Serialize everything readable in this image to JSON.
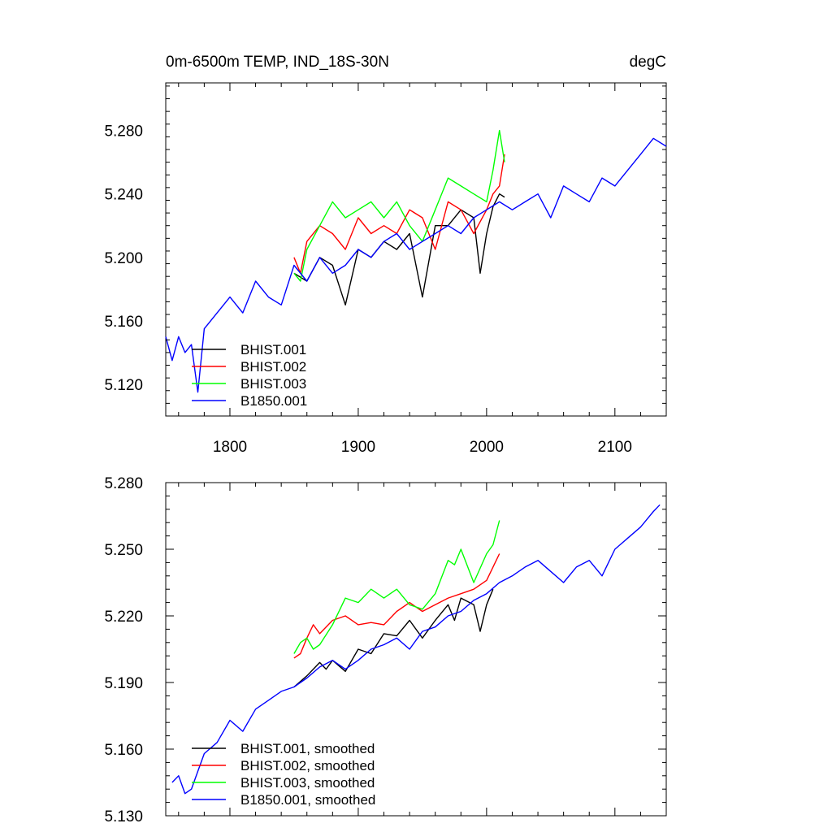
{
  "chart_data": [
    {
      "type": "line",
      "title": "0m-6500m TEMP, IND_18S-30N",
      "units_label": "degC",
      "xlim": [
        1750,
        2140
      ],
      "ylim": [
        5.1,
        5.31
      ],
      "xticks": [
        1800,
        1900,
        2000,
        2100
      ],
      "xtick_labels": [
        "1800",
        "1900",
        "2000",
        "2100"
      ],
      "yticks": [
        5.12,
        5.16,
        5.2,
        5.24,
        5.28
      ],
      "ytick_labels": [
        "5.120",
        "5.160",
        "5.200",
        "5.240",
        "5.280"
      ],
      "legend_position": "bottom-left",
      "series": [
        {
          "name": "BHIST.001",
          "color": "#000000",
          "x": [
            1850,
            1860,
            1870,
            1880,
            1890,
            1900,
            1910,
            1920,
            1930,
            1940,
            1950,
            1960,
            1970,
            1980,
            1990,
            1995,
            2000,
            2005,
            2010,
            2014
          ],
          "y": [
            5.19,
            5.185,
            5.2,
            5.195,
            5.17,
            5.205,
            5.2,
            5.21,
            5.205,
            5.215,
            5.175,
            5.22,
            5.22,
            5.23,
            5.225,
            5.19,
            5.215,
            5.232,
            5.24,
            5.238
          ]
        },
        {
          "name": "BHIST.002",
          "color": "#ff0000",
          "x": [
            1850,
            1855,
            1860,
            1870,
            1880,
            1890,
            1900,
            1910,
            1920,
            1930,
            1940,
            1950,
            1960,
            1970,
            1980,
            1990,
            2000,
            2005,
            2010,
            2014
          ],
          "y": [
            5.2,
            5.19,
            5.21,
            5.22,
            5.215,
            5.205,
            5.225,
            5.215,
            5.22,
            5.215,
            5.23,
            5.225,
            5.205,
            5.235,
            5.23,
            5.215,
            5.23,
            5.24,
            5.245,
            5.265
          ]
        },
        {
          "name": "BHIST.003",
          "color": "#00ff00",
          "x": [
            1850,
            1855,
            1860,
            1870,
            1880,
            1890,
            1900,
            1910,
            1920,
            1930,
            1940,
            1950,
            1960,
            1970,
            1980,
            1990,
            2000,
            2005,
            2010,
            2014
          ],
          "y": [
            5.19,
            5.185,
            5.205,
            5.22,
            5.235,
            5.225,
            5.23,
            5.235,
            5.225,
            5.235,
            5.22,
            5.21,
            5.23,
            5.25,
            5.245,
            5.24,
            5.235,
            5.255,
            5.28,
            5.26
          ]
        },
        {
          "name": "B1850.001",
          "color": "#0000ff",
          "x": [
            1750,
            1755,
            1760,
            1765,
            1770,
            1775,
            1780,
            1790,
            1800,
            1810,
            1820,
            1830,
            1840,
            1850,
            1860,
            1870,
            1880,
            1890,
            1900,
            1910,
            1920,
            1930,
            1940,
            1950,
            1960,
            1970,
            1980,
            1990,
            2000,
            2010,
            2020,
            2030,
            2040,
            2050,
            2060,
            2070,
            2080,
            2090,
            2100,
            2110,
            2120,
            2130,
            2140
          ],
          "y": [
            5.15,
            5.135,
            5.15,
            5.14,
            5.145,
            5.115,
            5.155,
            5.165,
            5.175,
            5.165,
            5.185,
            5.175,
            5.17,
            5.195,
            5.185,
            5.2,
            5.19,
            5.195,
            5.205,
            5.2,
            5.21,
            5.215,
            5.205,
            5.21,
            5.215,
            5.22,
            5.215,
            5.225,
            5.23,
            5.235,
            5.23,
            5.235,
            5.24,
            5.225,
            5.245,
            5.24,
            5.235,
            5.25,
            5.245,
            5.255,
            5.265,
            5.275,
            5.27
          ]
        }
      ]
    },
    {
      "type": "line",
      "title": "",
      "xlim": [
        1750,
        2140
      ],
      "ylim": [
        5.13,
        5.28
      ],
      "xticks": [
        1800,
        1900,
        2000,
        2100
      ],
      "yticks": [
        5.13,
        5.16,
        5.19,
        5.22,
        5.25,
        5.28
      ],
      "ytick_labels": [
        "5.130",
        "5.160",
        "5.190",
        "5.220",
        "5.250",
        "5.280"
      ],
      "legend_position": "bottom-left",
      "series": [
        {
          "name": "BHIST.001, smoothed",
          "color": "#000000",
          "x": [
            1850,
            1860,
            1870,
            1875,
            1880,
            1890,
            1900,
            1910,
            1920,
            1930,
            1940,
            1950,
            1960,
            1970,
            1975,
            1980,
            1990,
            1995,
            2000,
            2005
          ],
          "y": [
            5.188,
            5.193,
            5.199,
            5.196,
            5.2,
            5.195,
            5.205,
            5.203,
            5.212,
            5.211,
            5.218,
            5.21,
            5.218,
            5.225,
            5.218,
            5.228,
            5.225,
            5.213,
            5.225,
            5.232
          ]
        },
        {
          "name": "BHIST.002, smoothed",
          "color": "#ff0000",
          "x": [
            1850,
            1855,
            1860,
            1865,
            1870,
            1880,
            1890,
            1900,
            1910,
            1920,
            1930,
            1940,
            1950,
            1960,
            1970,
            1980,
            1990,
            2000,
            2005,
            2010
          ],
          "y": [
            5.201,
            5.203,
            5.21,
            5.216,
            5.212,
            5.218,
            5.22,
            5.216,
            5.217,
            5.216,
            5.222,
            5.226,
            5.222,
            5.225,
            5.228,
            5.23,
            5.232,
            5.236,
            5.242,
            5.248
          ]
        },
        {
          "name": "BHIST.003, smoothed",
          "color": "#00ff00",
          "x": [
            1850,
            1855,
            1860,
            1865,
            1870,
            1880,
            1890,
            1900,
            1910,
            1920,
            1930,
            1940,
            1950,
            1960,
            1970,
            1975,
            1980,
            1990,
            2000,
            2005,
            2010
          ],
          "y": [
            5.203,
            5.208,
            5.21,
            5.205,
            5.207,
            5.216,
            5.228,
            5.226,
            5.232,
            5.228,
            5.232,
            5.225,
            5.223,
            5.23,
            5.245,
            5.243,
            5.25,
            5.235,
            5.248,
            5.252,
            5.263
          ]
        },
        {
          "name": "B1850.001, smoothed",
          "color": "#0000ff",
          "x": [
            1755,
            1760,
            1765,
            1770,
            1775,
            1780,
            1790,
            1800,
            1810,
            1820,
            1830,
            1840,
            1850,
            1860,
            1870,
            1880,
            1890,
            1900,
            1910,
            1920,
            1930,
            1940,
            1950,
            1960,
            1970,
            1980,
            1990,
            2000,
            2010,
            2020,
            2030,
            2040,
            2050,
            2060,
            2070,
            2080,
            2090,
            2100,
            2110,
            2120,
            2130,
            2135
          ],
          "y": [
            5.145,
            5.148,
            5.14,
            5.142,
            5.15,
            5.158,
            5.163,
            5.173,
            5.168,
            5.178,
            5.182,
            5.186,
            5.188,
            5.192,
            5.197,
            5.2,
            5.196,
            5.2,
            5.205,
            5.207,
            5.21,
            5.205,
            5.213,
            5.215,
            5.22,
            5.222,
            5.227,
            5.23,
            5.235,
            5.238,
            5.242,
            5.245,
            5.24,
            5.235,
            5.242,
            5.245,
            5.238,
            5.25,
            5.255,
            5.26,
            5.267,
            5.27
          ]
        }
      ]
    }
  ]
}
